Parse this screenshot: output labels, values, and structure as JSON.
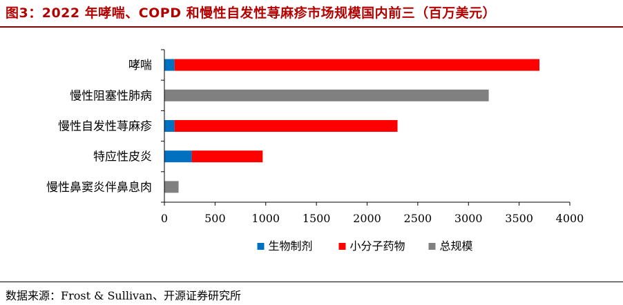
{
  "title": "图3：2022 年哮喘、COPD 和慢性自发性荨麻疹市场规模国内前三（百万美元）",
  "source": "数据来源：Frost & Sullivan、开源证券研究所",
  "chart_data": {
    "type": "bar",
    "orientation": "horizontal",
    "stacked": true,
    "categories": [
      "哮喘",
      "慢性阻塞性肺病",
      "慢性自发性荨麻疹",
      "特应性皮炎",
      "慢性鼻窦炎伴鼻息肉"
    ],
    "series": [
      {
        "name": "生物制剂",
        "color": "#0070c0",
        "values": [
          100,
          0,
          100,
          270,
          0
        ]
      },
      {
        "name": "小分子药物",
        "color": "#ff0000",
        "values": [
          3600,
          0,
          2200,
          700,
          0
        ]
      },
      {
        "name": "总规模",
        "color": "#808080",
        "values": [
          0,
          3200,
          0,
          0,
          140
        ]
      }
    ],
    "xticks": [
      0,
      500,
      1000,
      1500,
      2000,
      2500,
      3000,
      3500,
      4000
    ],
    "xlim": [
      0,
      4000
    ],
    "grid": false,
    "legend_position": "bottom"
  }
}
